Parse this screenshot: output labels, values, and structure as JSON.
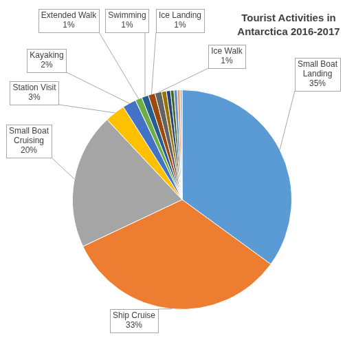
{
  "chart_data": {
    "type": "pie",
    "title": "Tourist Activities in Antarctica 2016-2017",
    "categories": [
      "Small Boat Landing",
      "Ship Cruise",
      "Small Boat Cruising",
      "Station Visit",
      "Kayaking",
      "Extended Walk",
      "Swimming",
      "Ice Landing",
      "Ice Walk",
      null,
      null,
      null,
      null,
      null,
      null
    ],
    "values": [
      35,
      33,
      20,
      3,
      2,
      1,
      1,
      1,
      1,
      0.7,
      0.6,
      0.5,
      0.5,
      0.4,
      0.3
    ],
    "value_labels": [
      "35%",
      "33%",
      "20%",
      "3%",
      "2%",
      "1%",
      "1%",
      "1%",
      "1%",
      null,
      null,
      null,
      null,
      null,
      null
    ],
    "colors": [
      "#5B9BD5",
      "#ED7D31",
      "#A5A5A5",
      "#FFC000",
      "#4472C4",
      "#70AD47",
      "#255E91",
      "#9E480E",
      "#636363",
      "#997300",
      "#264478",
      "#43682B",
      "#698ED0",
      "#F1975A",
      "#B7B7B7"
    ],
    "data_labels": true
  }
}
